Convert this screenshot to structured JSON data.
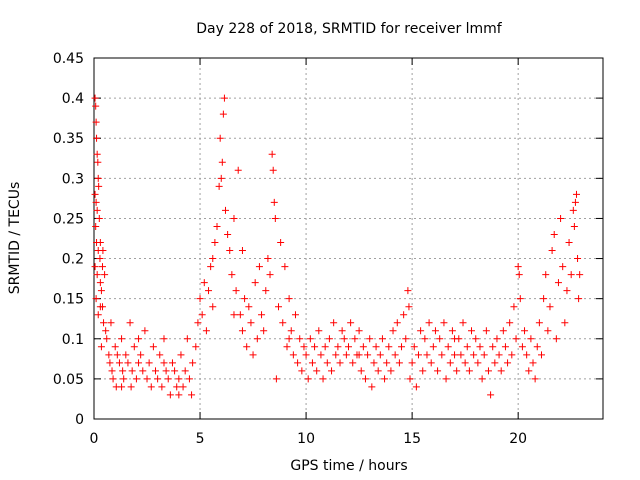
{
  "chart_data": {
    "type": "scatter",
    "title": "Day 228 of 2018, SRMTID for receiver lmmf",
    "xlabel": "GPS time / hours",
    "ylabel": "SRMTID / TECUs",
    "xlim": [
      0,
      24
    ],
    "ylim": [
      0,
      0.45
    ],
    "xticks": [
      0,
      5,
      10,
      15,
      20
    ],
    "xtick_labels": [
      "0",
      "5",
      "10",
      "15",
      "20"
    ],
    "yticks": [
      0,
      0.05,
      0.1,
      0.15,
      0.2,
      0.25,
      0.3,
      0.35,
      0.4,
      0.45
    ],
    "ytick_labels": [
      "0",
      "0.05",
      "0.1",
      "0.15",
      "0.2",
      "0.25",
      "0.3",
      "0.35",
      "0.4",
      "0.45"
    ],
    "grid": true,
    "marker": "plus",
    "series": [
      {
        "name": "SRMTID",
        "color": "#ff0000",
        "points": [
          [
            0.05,
            0.4
          ],
          [
            0.08,
            0.39
          ],
          [
            0.1,
            0.37
          ],
          [
            0.12,
            0.35
          ],
          [
            0.15,
            0.33
          ],
          [
            0.18,
            0.32
          ],
          [
            0.2,
            0.3
          ],
          [
            0.22,
            0.29
          ],
          [
            0.05,
            0.28
          ],
          [
            0.1,
            0.27
          ],
          [
            0.15,
            0.26
          ],
          [
            0.25,
            0.25
          ],
          [
            0.08,
            0.24
          ],
          [
            0.12,
            0.22
          ],
          [
            0.2,
            0.21
          ],
          [
            0.28,
            0.2
          ],
          [
            0.05,
            0.19
          ],
          [
            0.15,
            0.18
          ],
          [
            0.3,
            0.17
          ],
          [
            0.35,
            0.16
          ],
          [
            0.1,
            0.15
          ],
          [
            0.4,
            0.14
          ],
          [
            0.2,
            0.13
          ],
          [
            0.45,
            0.12
          ],
          [
            0.5,
            0.18
          ],
          [
            0.3,
            0.14
          ],
          [
            0.55,
            0.11
          ],
          [
            0.6,
            0.1
          ],
          [
            0.35,
            0.09
          ],
          [
            0.42,
            0.21
          ],
          [
            0.7,
            0.08
          ],
          [
            0.75,
            0.07
          ],
          [
            0.8,
            0.12
          ],
          [
            0.85,
            0.06
          ],
          [
            0.9,
            0.05
          ],
          [
            1.0,
            0.09
          ],
          [
            1.05,
            0.04
          ],
          [
            1.1,
            0.08
          ],
          [
            1.2,
            0.07
          ],
          [
            1.3,
            0.1
          ],
          [
            1.35,
            0.06
          ],
          [
            1.4,
            0.05
          ],
          [
            1.5,
            0.08
          ],
          [
            1.6,
            0.07
          ],
          [
            1.7,
            0.12
          ],
          [
            1.75,
            0.04
          ],
          [
            1.8,
            0.06
          ],
          [
            1.9,
            0.09
          ],
          [
            2.0,
            0.05
          ],
          [
            2.1,
            0.07
          ],
          [
            2.2,
            0.08
          ],
          [
            2.3,
            0.06
          ],
          [
            2.4,
            0.11
          ],
          [
            2.5,
            0.05
          ],
          [
            2.6,
            0.07
          ],
          [
            2.7,
            0.04
          ],
          [
            2.8,
            0.09
          ],
          [
            2.9,
            0.06
          ],
          [
            3.0,
            0.05
          ],
          [
            3.1,
            0.08
          ],
          [
            3.2,
            0.04
          ],
          [
            3.3,
            0.07
          ],
          [
            3.4,
            0.06
          ],
          [
            3.5,
            0.05
          ],
          [
            3.6,
            0.03
          ],
          [
            3.7,
            0.07
          ],
          [
            3.8,
            0.06
          ],
          [
            3.9,
            0.04
          ],
          [
            4.0,
            0.05
          ],
          [
            4.1,
            0.08
          ],
          [
            4.2,
            0.04
          ],
          [
            4.3,
            0.06
          ],
          [
            4.4,
            0.1
          ],
          [
            4.5,
            0.05
          ],
          [
            4.6,
            0.03
          ],
          [
            4.65,
            0.07
          ],
          [
            2.1,
            0.1
          ],
          [
            1.3,
            0.04
          ],
          [
            3.3,
            0.1
          ],
          [
            4.0,
            0.03
          ],
          [
            4.8,
            0.09
          ],
          [
            4.9,
            0.12
          ],
          [
            5.0,
            0.15
          ],
          [
            5.1,
            0.13
          ],
          [
            5.2,
            0.17
          ],
          [
            5.3,
            0.11
          ],
          [
            5.4,
            0.16
          ],
          [
            5.5,
            0.19
          ],
          [
            5.6,
            0.2
          ],
          [
            5.7,
            0.22
          ],
          [
            5.8,
            0.24
          ],
          [
            5.9,
            0.29
          ],
          [
            6.0,
            0.3
          ],
          [
            6.05,
            0.32
          ],
          [
            5.95,
            0.35
          ],
          [
            6.1,
            0.38
          ],
          [
            6.15,
            0.4
          ],
          [
            6.2,
            0.26
          ],
          [
            6.3,
            0.23
          ],
          [
            6.4,
            0.21
          ],
          [
            6.5,
            0.18
          ],
          [
            6.6,
            0.25
          ],
          [
            6.7,
            0.16
          ],
          [
            6.8,
            0.31
          ],
          [
            6.9,
            0.13
          ],
          [
            7.0,
            0.11
          ],
          [
            7.1,
            0.15
          ],
          [
            7.2,
            0.09
          ],
          [
            7.3,
            0.14
          ],
          [
            7.4,
            0.12
          ],
          [
            7.5,
            0.08
          ],
          [
            7.6,
            0.17
          ],
          [
            7.7,
            0.1
          ],
          [
            7.8,
            0.19
          ],
          [
            7.9,
            0.13
          ],
          [
            8.0,
            0.11
          ],
          [
            8.1,
            0.16
          ],
          [
            8.2,
            0.2
          ],
          [
            8.3,
            0.18
          ],
          [
            8.4,
            0.33
          ],
          [
            8.45,
            0.31
          ],
          [
            8.5,
            0.27
          ],
          [
            8.55,
            0.25
          ],
          [
            8.6,
            0.05
          ],
          [
            8.7,
            0.14
          ],
          [
            8.8,
            0.22
          ],
          [
            8.9,
            0.12
          ],
          [
            9.0,
            0.19
          ],
          [
            9.1,
            0.09
          ],
          [
            9.2,
            0.15
          ],
          [
            9.3,
            0.11
          ],
          [
            9.4,
            0.08
          ],
          [
            9.5,
            0.13
          ],
          [
            9.6,
            0.07
          ],
          [
            9.7,
            0.1
          ],
          [
            9.8,
            0.06
          ],
          [
            9.9,
            0.09
          ],
          [
            10.0,
            0.08
          ],
          [
            10.1,
            0.05
          ],
          [
            10.2,
            0.1
          ],
          [
            10.3,
            0.07
          ],
          [
            10.4,
            0.09
          ],
          [
            10.5,
            0.06
          ],
          [
            10.6,
            0.11
          ],
          [
            10.7,
            0.08
          ],
          [
            10.8,
            0.05
          ],
          [
            10.9,
            0.09
          ],
          [
            11.0,
            0.07
          ],
          [
            11.1,
            0.1
          ],
          [
            11.2,
            0.06
          ],
          [
            11.3,
            0.12
          ],
          [
            11.4,
            0.08
          ],
          [
            11.5,
            0.09
          ],
          [
            11.6,
            0.07
          ],
          [
            11.7,
            0.11
          ],
          [
            11.8,
            0.1
          ],
          [
            11.9,
            0.08
          ],
          [
            12.0,
            0.09
          ],
          [
            12.1,
            0.12
          ],
          [
            12.2,
            0.07
          ],
          [
            12.3,
            0.1
          ],
          [
            12.4,
            0.08
          ],
          [
            12.5,
            0.11
          ],
          [
            12.6,
            0.06
          ],
          [
            12.7,
            0.09
          ],
          [
            12.8,
            0.05
          ],
          [
            12.9,
            0.08
          ],
          [
            13.0,
            0.1
          ],
          [
            13.1,
            0.04
          ],
          [
            13.2,
            0.07
          ],
          [
            13.3,
            0.09
          ],
          [
            13.4,
            0.06
          ],
          [
            13.5,
            0.08
          ],
          [
            13.6,
            0.1
          ],
          [
            13.7,
            0.05
          ],
          [
            13.8,
            0.07
          ],
          [
            13.9,
            0.09
          ],
          [
            14.0,
            0.06
          ],
          [
            14.1,
            0.11
          ],
          [
            14.2,
            0.08
          ],
          [
            14.3,
            0.12
          ],
          [
            14.4,
            0.07
          ],
          [
            14.5,
            0.09
          ],
          [
            14.6,
            0.13
          ],
          [
            14.7,
            0.1
          ],
          [
            14.8,
            0.16
          ],
          [
            14.85,
            0.14
          ],
          [
            14.9,
            0.05
          ],
          [
            15.0,
            0.07
          ],
          [
            15.1,
            0.09
          ],
          [
            15.2,
            0.04
          ],
          [
            15.3,
            0.08
          ],
          [
            15.4,
            0.11
          ],
          [
            15.5,
            0.06
          ],
          [
            15.6,
            0.1
          ],
          [
            15.7,
            0.08
          ],
          [
            15.8,
            0.12
          ],
          [
            15.9,
            0.07
          ],
          [
            16.0,
            0.09
          ],
          [
            16.1,
            0.11
          ],
          [
            16.2,
            0.06
          ],
          [
            16.3,
            0.1
          ],
          [
            16.4,
            0.08
          ],
          [
            16.5,
            0.12
          ],
          [
            16.6,
            0.05
          ],
          [
            16.7,
            0.09
          ],
          [
            16.8,
            0.07
          ],
          [
            16.9,
            0.11
          ],
          [
            17.0,
            0.08
          ],
          [
            17.1,
            0.06
          ],
          [
            17.2,
            0.1
          ],
          [
            17.3,
            0.08
          ],
          [
            17.4,
            0.12
          ],
          [
            17.5,
            0.07
          ],
          [
            17.6,
            0.09
          ],
          [
            17.7,
            0.06
          ],
          [
            17.8,
            0.11
          ],
          [
            17.9,
            0.08
          ],
          [
            18.0,
            0.1
          ],
          [
            18.1,
            0.07
          ],
          [
            18.2,
            0.09
          ],
          [
            18.3,
            0.05
          ],
          [
            18.4,
            0.08
          ],
          [
            18.5,
            0.11
          ],
          [
            18.6,
            0.06
          ],
          [
            18.7,
            0.03
          ],
          [
            18.8,
            0.09
          ],
          [
            18.9,
            0.07
          ],
          [
            19.0,
            0.1
          ],
          [
            19.1,
            0.08
          ],
          [
            19.2,
            0.06
          ],
          [
            19.3,
            0.11
          ],
          [
            19.4,
            0.09
          ],
          [
            19.5,
            0.07
          ],
          [
            19.6,
            0.12
          ],
          [
            19.7,
            0.08
          ],
          [
            19.8,
            0.14
          ],
          [
            19.9,
            0.1
          ],
          [
            20.0,
            0.19
          ],
          [
            20.05,
            0.18
          ],
          [
            20.1,
            0.15
          ],
          [
            20.2,
            0.09
          ],
          [
            20.3,
            0.11
          ],
          [
            20.4,
            0.08
          ],
          [
            20.5,
            0.06
          ],
          [
            20.6,
            0.1
          ],
          [
            20.7,
            0.07
          ],
          [
            20.8,
            0.05
          ],
          [
            20.9,
            0.09
          ],
          [
            21.0,
            0.12
          ],
          [
            21.1,
            0.08
          ],
          [
            21.2,
            0.15
          ],
          [
            21.3,
            0.18
          ],
          [
            21.4,
            0.11
          ],
          [
            21.5,
            0.14
          ],
          [
            21.6,
            0.21
          ],
          [
            21.7,
            0.23
          ],
          [
            21.8,
            0.1
          ],
          [
            21.9,
            0.17
          ],
          [
            22.0,
            0.25
          ],
          [
            22.1,
            0.19
          ],
          [
            22.2,
            0.12
          ],
          [
            22.3,
            0.16
          ],
          [
            22.4,
            0.22
          ],
          [
            22.5,
            0.18
          ],
          [
            22.6,
            0.26
          ],
          [
            22.65,
            0.24
          ],
          [
            22.7,
            0.27
          ],
          [
            22.75,
            0.28
          ],
          [
            22.8,
            0.2
          ],
          [
            22.85,
            0.15
          ],
          [
            22.9,
            0.18
          ],
          [
            0.3,
            0.22
          ],
          [
            0.4,
            0.19
          ],
          [
            5.6,
            0.14
          ],
          [
            6.6,
            0.13
          ],
          [
            7.0,
            0.21
          ],
          [
            9.2,
            0.1
          ],
          [
            12.5,
            0.08
          ],
          [
            17.0,
            0.1
          ]
        ]
      }
    ]
  }
}
